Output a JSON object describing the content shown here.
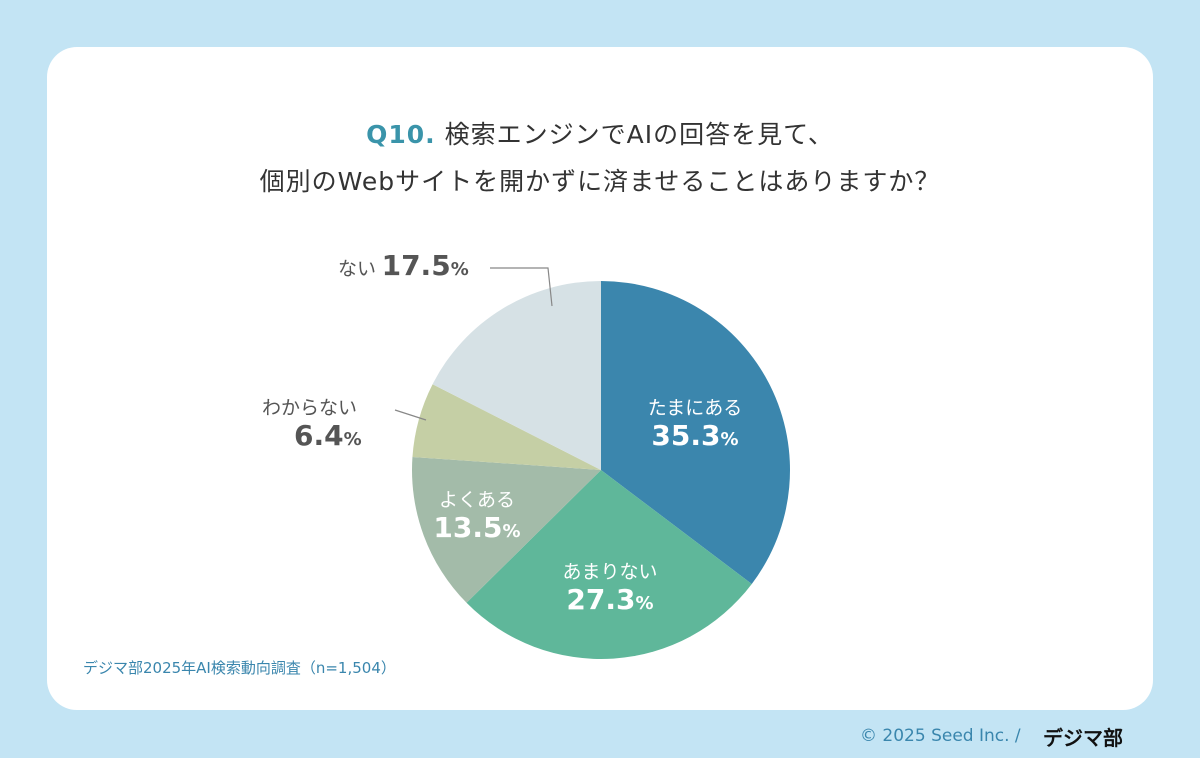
{
  "title": {
    "q": "Q10.",
    "line1": "検索エンジンでAIの回答を見て、",
    "line2": "個別のWebサイトを開かずに済ませることはありますか？"
  },
  "chart_data": {
    "type": "pie",
    "start": "top",
    "direction": "clockwise",
    "slices": [
      {
        "label": "たまにある",
        "value": 35.3,
        "display": "35.3",
        "color": "#3b86ad"
      },
      {
        "label": "あまりない",
        "value": 27.3,
        "display": "27.3",
        "color": "#5fb79a"
      },
      {
        "label": "よくある",
        "value": 13.5,
        "display": "13.5",
        "color": "#a3bba9"
      },
      {
        "label": "わからない",
        "value": 6.4,
        "display": "6.4",
        "color": "#c5cfa5"
      },
      {
        "label": "ない",
        "value": 17.5,
        "display": "17.5",
        "color": "#d6e1e5"
      }
    ],
    "unit": "%"
  },
  "source": "デジマ部2025年AI検索動向調査（n=1,504）",
  "footer": {
    "copyright": "© 2025 Seed Inc. /",
    "logo": "デジマ部"
  }
}
